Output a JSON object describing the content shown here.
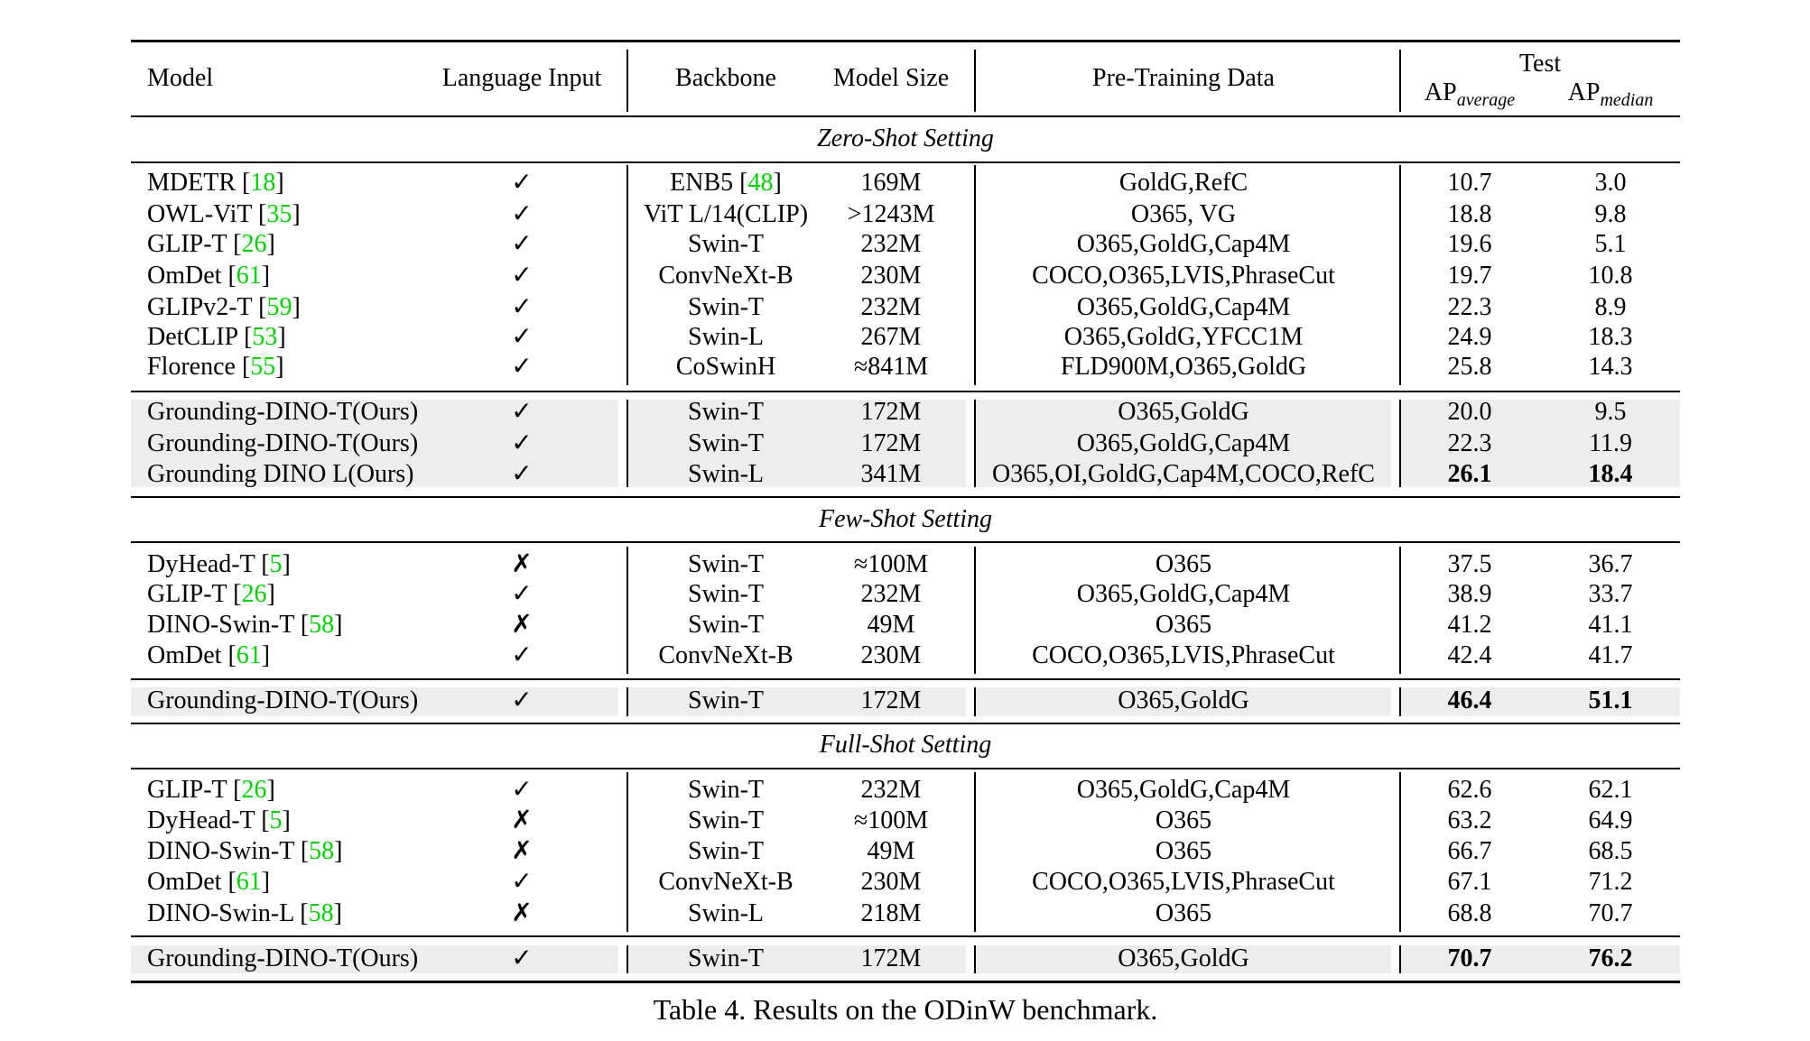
{
  "header": {
    "model": "Model",
    "language_input": "Language Input",
    "backbone": "Backbone",
    "model_size": "Model Size",
    "pretraining_data": "Pre-Training Data",
    "test": "Test",
    "ap_average": {
      "base": "AP",
      "sub": "average"
    },
    "ap_median": {
      "base": "AP",
      "sub": "median"
    }
  },
  "sections": [
    {
      "title": "Zero-Shot Setting",
      "rows": [
        {
          "model": "MDETR",
          "cite": "18",
          "lang": "✓",
          "backbone": "ENB5",
          "backbone_cite": "48",
          "size": "169M",
          "data": "GoldG,RefC",
          "ap_avg": "10.7",
          "ap_med": "3.0"
        },
        {
          "model": "OWL-ViT",
          "cite": "35",
          "lang": "✓",
          "backbone": "ViT L/14(CLIP)",
          "size": ">1243M",
          "data": "O365, VG",
          "ap_avg": "18.8",
          "ap_med": "9.8"
        },
        {
          "model": "GLIP-T",
          "cite": "26",
          "lang": "✓",
          "backbone": "Swin-T",
          "size": "232M",
          "data": "O365,GoldG,Cap4M",
          "ap_avg": "19.6",
          "ap_med": "5.1"
        },
        {
          "model": "OmDet",
          "cite": "61",
          "lang": "✓",
          "backbone": "ConvNeXt-B",
          "size": "230M",
          "data": "COCO,O365,LVIS,PhraseCut",
          "ap_avg": "19.7",
          "ap_med": "10.8"
        },
        {
          "model": "GLIPv2-T",
          "cite": "59",
          "lang": "✓",
          "backbone": "Swin-T",
          "size": "232M",
          "data": "O365,GoldG,Cap4M",
          "ap_avg": "22.3",
          "ap_med": "8.9"
        },
        {
          "model": "DetCLIP",
          "cite": "53",
          "lang": "✓",
          "backbone": "Swin-L",
          "size": "267M",
          "data": "O365,GoldG,YFCC1M",
          "ap_avg": "24.9",
          "ap_med": "18.3"
        },
        {
          "model": "Florence",
          "cite": "55",
          "lang": "✓",
          "backbone": "CoSwinH",
          "size": "≈841M",
          "data": "FLD900M,O365,GoldG",
          "ap_avg": "25.8",
          "ap_med": "14.3"
        }
      ],
      "ours": [
        {
          "model": "Grounding-DINO-T(Ours)",
          "lang": "✓",
          "backbone": "Swin-T",
          "size": "172M",
          "data": "O365,GoldG",
          "ap_avg": "20.0",
          "ap_med": "9.5"
        },
        {
          "model": "Grounding-DINO-T(Ours)",
          "lang": "✓",
          "backbone": "Swin-T",
          "size": "172M",
          "data": "O365,GoldG,Cap4M",
          "ap_avg": "22.3",
          "ap_med": "11.9"
        },
        {
          "model": "Grounding DINO L(Ours)",
          "lang": "✓",
          "backbone": "Swin-L",
          "size": "341M",
          "data": "O365,OI,GoldG,Cap4M,COCO,RefC",
          "ap_avg": "26.1",
          "ap_med": "18.4",
          "bold": true
        }
      ]
    },
    {
      "title": "Few-Shot Setting",
      "rows": [
        {
          "model": "DyHead-T",
          "cite": "5",
          "lang": "✗",
          "backbone": "Swin-T",
          "size": "≈100M",
          "data": "O365",
          "ap_avg": "37.5",
          "ap_med": "36.7"
        },
        {
          "model": "GLIP-T",
          "cite": "26",
          "lang": "✓",
          "backbone": "Swin-T",
          "size": "232M",
          "data": "O365,GoldG,Cap4M",
          "ap_avg": "38.9",
          "ap_med": "33.7"
        },
        {
          "model": "DINO-Swin-T",
          "cite": "58",
          "lang": "✗",
          "backbone": "Swin-T",
          "size": "49M",
          "data": "O365",
          "ap_avg": "41.2",
          "ap_med": "41.1"
        },
        {
          "model": "OmDet",
          "cite": "61",
          "lang": "✓",
          "backbone": "ConvNeXt-B",
          "size": "230M",
          "data": "COCO,O365,LVIS,PhraseCut",
          "ap_avg": "42.4",
          "ap_med": "41.7"
        }
      ],
      "ours": [
        {
          "model": "Grounding-DINO-T(Ours)",
          "lang": "✓",
          "backbone": "Swin-T",
          "size": "172M",
          "data": "O365,GoldG",
          "ap_avg": "46.4",
          "ap_med": "51.1",
          "bold": true
        }
      ]
    },
    {
      "title": "Full-Shot Setting",
      "rows": [
        {
          "model": "GLIP-T",
          "cite": "26",
          "lang": "✓",
          "backbone": "Swin-T",
          "size": "232M",
          "data": "O365,GoldG,Cap4M",
          "ap_avg": "62.6",
          "ap_med": "62.1"
        },
        {
          "model": "DyHead-T",
          "cite": "5",
          "lang": "✗",
          "backbone": "Swin-T",
          "size": "≈100M",
          "data": "O365",
          "ap_avg": "63.2",
          "ap_med": "64.9"
        },
        {
          "model": "DINO-Swin-T",
          "cite": "58",
          "lang": "✗",
          "backbone": "Swin-T",
          "size": "49M",
          "data": "O365",
          "ap_avg": "66.7",
          "ap_med": "68.5"
        },
        {
          "model": "OmDet",
          "cite": "61",
          "lang": "✓",
          "backbone": "ConvNeXt-B",
          "size": "230M",
          "data": "COCO,O365,LVIS,PhraseCut",
          "ap_avg": "67.1",
          "ap_med": "71.2"
        },
        {
          "model": "DINO-Swin-L",
          "cite": "58",
          "lang": "✗",
          "backbone": "Swin-L",
          "size": "218M",
          "data": "O365",
          "ap_avg": "68.8",
          "ap_med": "70.7"
        }
      ],
      "ours": [
        {
          "model": "Grounding-DINO-T(Ours)",
          "lang": "✓",
          "backbone": "Swin-T",
          "size": "172M",
          "data": "O365,GoldG",
          "ap_avg": "70.7",
          "ap_med": "76.2",
          "bold": true
        }
      ]
    }
  ],
  "caption": "Table 4. Results on the ODinW benchmark."
}
